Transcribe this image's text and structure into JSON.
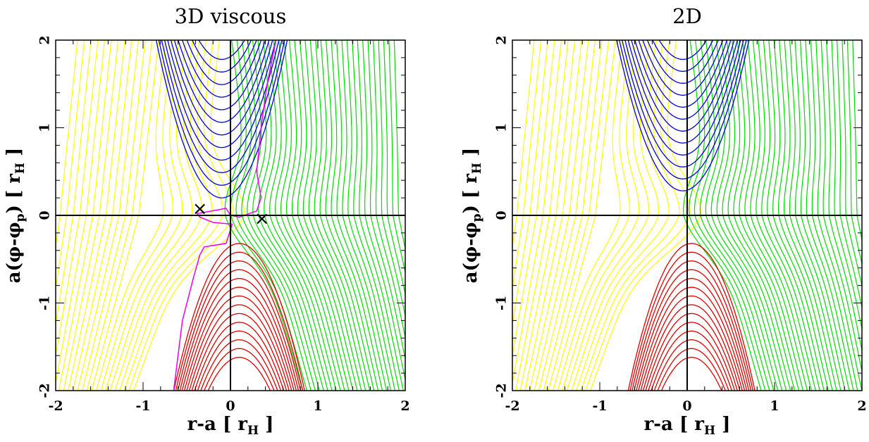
{
  "chart_data": [
    {
      "type": "contour",
      "title": "3D viscous",
      "xlabel": "r-a [ r",
      "xlabel_sub": "H",
      "xlabel_tail": " ]",
      "ylabel": "a(φ-φ",
      "ylabel_sub1": "p",
      "ylabel_mid": ") [ r",
      "ylabel_sub2": "H",
      "ylabel_tail": " ]",
      "xlim": [
        -2,
        2
      ],
      "ylim": [
        -2,
        2
      ],
      "xticks": [
        "-2",
        "-1",
        "0",
        "1",
        "2"
      ],
      "yticks": [
        "-2",
        "-1",
        "0",
        "1",
        "2"
      ],
      "colors": {
        "left_region": "#ffff00",
        "right_region": "#00dd00",
        "upper_region": "#0000dd",
        "lower_region": "#dd0000",
        "separatrix": "#ee00ee"
      },
      "markers": [
        {
          "symbol": "×",
          "x": -0.35,
          "y": 0.08
        },
        {
          "symbol": "×",
          "x": 0.36,
          "y": -0.03
        }
      ],
      "has_separatrix": true
    },
    {
      "type": "contour",
      "title": "2D",
      "xlabel": "r-a [ r",
      "xlabel_sub": "H",
      "xlabel_tail": " ]",
      "ylabel": "a(φ-φ",
      "ylabel_sub1": "p",
      "ylabel_mid": ") [ r",
      "ylabel_sub2": "H",
      "ylabel_tail": " ]",
      "xlim": [
        -2,
        2
      ],
      "ylim": [
        -2,
        2
      ],
      "xticks": [
        "-2",
        "-1",
        "0",
        "1",
        "2"
      ],
      "yticks": [
        "-2",
        "-1",
        "0",
        "1",
        "2"
      ],
      "colors": {
        "left_region": "#ffff00",
        "right_region": "#00dd00",
        "upper_region": "#0000dd",
        "lower_region": "#dd0000"
      },
      "markers": [],
      "has_separatrix": false
    }
  ]
}
